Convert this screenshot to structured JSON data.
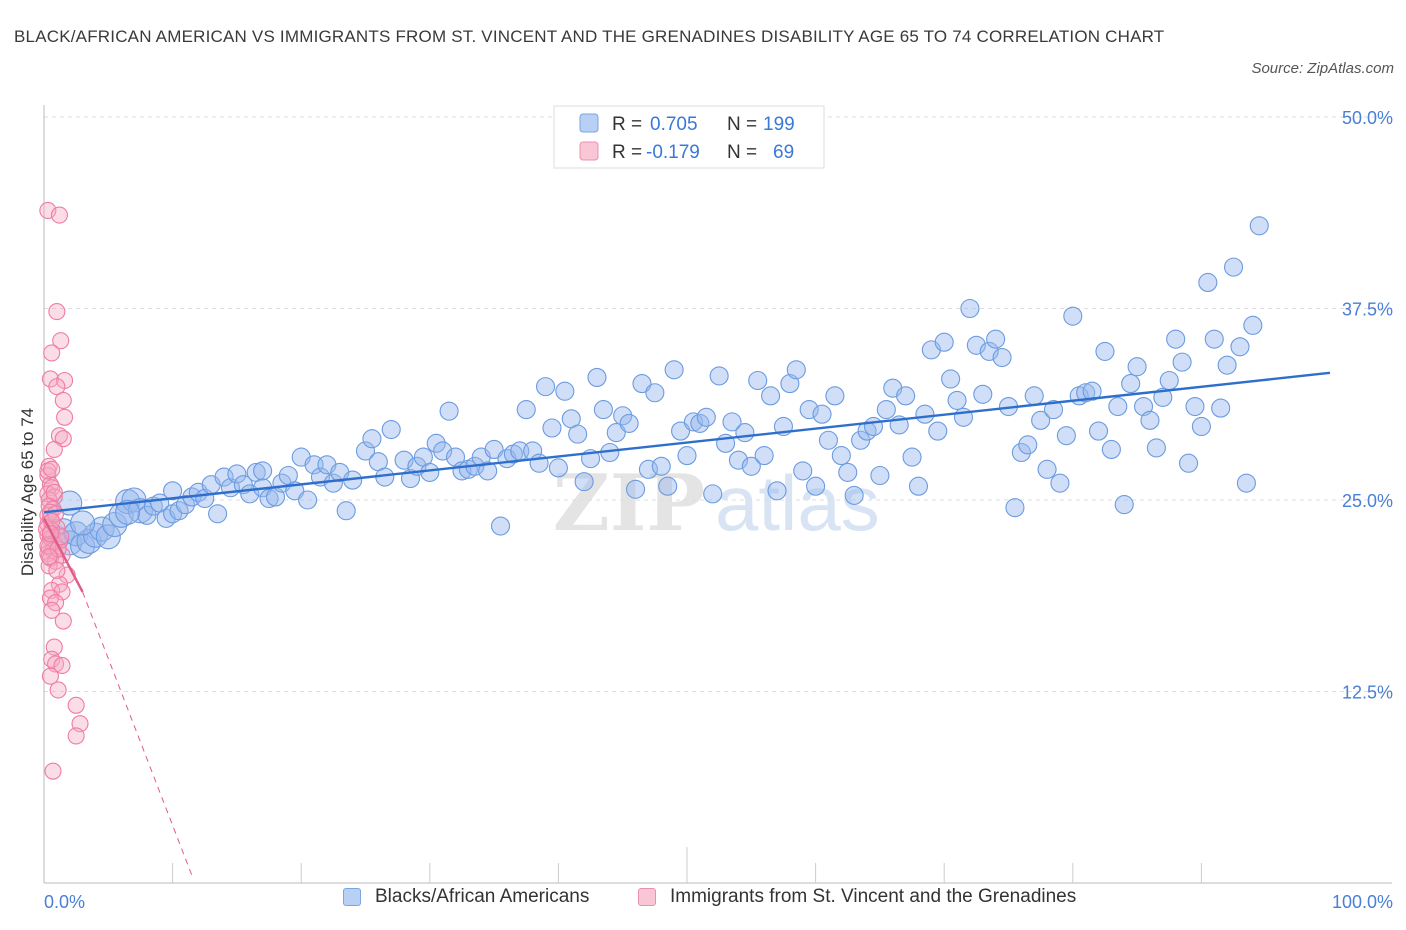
{
  "title": "BLACK/AFRICAN AMERICAN VS IMMIGRANTS FROM ST. VINCENT AND THE GRENADINES DISABILITY AGE 65 TO 74 CORRELATION CHART",
  "source": "Source: ZipAtlas.com",
  "colors": {
    "blue": "#6b9be0",
    "blue_line": "#2f6fcc",
    "pink": "#f07ca3",
    "pink_line": "#e05a8a",
    "axis_text": "#4a7fd4"
  },
  "chart_data": {
    "type": "scatter",
    "title": "BLACK/AFRICAN AMERICAN VS IMMIGRANTS FROM ST. VINCENT AND THE GRENADINES DISABILITY AGE 65 TO 74 CORRELATION CHART",
    "xlabel": "",
    "ylabel": "Disability Age 65 to 74",
    "xlim": [
      0,
      100
    ],
    "ylim": [
      0,
      50
    ],
    "x_tick_labels": [
      "0.0%",
      "100.0%"
    ],
    "y_ticks": [
      12.5,
      25.0,
      37.5,
      50.0
    ],
    "y_tick_labels": [
      "12.5%",
      "25.0%",
      "37.5%",
      "50.0%"
    ],
    "grid": "horizontal dashed",
    "legend_position": "top-center and bottom",
    "stats": [
      {
        "r_label": "R =",
        "r_value": "0.705",
        "n_label": "N =",
        "n_value": "199"
      },
      {
        "r_label": "R =",
        "r_value": "-0.179",
        "n_label": "N =",
        "n_value": "69"
      }
    ],
    "series": [
      {
        "name": "Blacks/African Americans",
        "trend": {
          "x": [
            0,
            100
          ],
          "y": [
            24.2,
            33.3
          ]
        },
        "points": [
          [
            1,
            22.5
          ],
          [
            1.5,
            23
          ],
          [
            2,
            22.2
          ],
          [
            2.5,
            22.8
          ],
          [
            3,
            22
          ],
          [
            3.5,
            22.3
          ],
          [
            4,
            22.7
          ],
          [
            4.5,
            23.1
          ],
          [
            5,
            22.6
          ],
          [
            5.5,
            23.4
          ],
          [
            6,
            24
          ],
          [
            6.5,
            24.9
          ],
          [
            7,
            25
          ],
          [
            7.5,
            24.3
          ],
          [
            8,
            24
          ],
          [
            8.5,
            24.6
          ],
          [
            9,
            24.8
          ],
          [
            9.5,
            23.8
          ],
          [
            10,
            24.1
          ],
          [
            10.5,
            24.3
          ],
          [
            11,
            24.7
          ],
          [
            11.5,
            25.2
          ],
          [
            12,
            25.5
          ],
          [
            12.5,
            25.1
          ],
          [
            13,
            26
          ],
          [
            13.5,
            24.1
          ],
          [
            14,
            26.5
          ],
          [
            14.5,
            25.8
          ],
          [
            15,
            26.7
          ],
          [
            15.5,
            26
          ],
          [
            16,
            25.4
          ],
          [
            16.5,
            26.8
          ],
          [
            17,
            25.8
          ],
          [
            17.5,
            25.1
          ],
          [
            18,
            25.2
          ],
          [
            18.5,
            26.1
          ],
          [
            19,
            26.6
          ],
          [
            19.5,
            25.6
          ],
          [
            20,
            27.8
          ],
          [
            20.5,
            25
          ],
          [
            21,
            27.3
          ],
          [
            21.5,
            26.5
          ],
          [
            22,
            27.3
          ],
          [
            22.5,
            26.1
          ],
          [
            23,
            26.8
          ],
          [
            23.5,
            24.3
          ],
          [
            24,
            26.3
          ],
          [
            25,
            28.2
          ],
          [
            25.5,
            29
          ],
          [
            26,
            27.5
          ],
          [
            26.5,
            26.5
          ],
          [
            27,
            29.6
          ],
          [
            28,
            27.6
          ],
          [
            28.5,
            26.4
          ],
          [
            29,
            27.2
          ],
          [
            29.5,
            27.8
          ],
          [
            30,
            26.8
          ],
          [
            30.5,
            28.7
          ],
          [
            31,
            28.2
          ],
          [
            31.5,
            30.8
          ],
          [
            32,
            27.8
          ],
          [
            32.5,
            26.9
          ],
          [
            33,
            27
          ],
          [
            33.5,
            27.2
          ],
          [
            34,
            27.8
          ],
          [
            34.5,
            26.9
          ],
          [
            35,
            28.3
          ],
          [
            35.5,
            23.3
          ],
          [
            36,
            27.7
          ],
          [
            36.5,
            28
          ],
          [
            37,
            28.2
          ],
          [
            37.5,
            30.9
          ],
          [
            38,
            28.2
          ],
          [
            38.5,
            27.4
          ],
          [
            39,
            32.4
          ],
          [
            39.5,
            29.7
          ],
          [
            40,
            27.1
          ],
          [
            40.5,
            32.1
          ],
          [
            41,
            30.3
          ],
          [
            41.5,
            29.3
          ],
          [
            42,
            26.2
          ],
          [
            42.5,
            27.7
          ],
          [
            43,
            33
          ],
          [
            43.5,
            30.9
          ],
          [
            44,
            28.1
          ],
          [
            44.5,
            29.4
          ],
          [
            45,
            30.5
          ],
          [
            45.5,
            30
          ],
          [
            46,
            25.7
          ],
          [
            46.5,
            32.6
          ],
          [
            47,
            27
          ],
          [
            47.5,
            32
          ],
          [
            48,
            27.2
          ],
          [
            48.5,
            25.9
          ],
          [
            49,
            33.5
          ],
          [
            49.5,
            29.5
          ],
          [
            50,
            27.9
          ],
          [
            50.5,
            30.1
          ],
          [
            51,
            30
          ],
          [
            51.5,
            30.4
          ],
          [
            52,
            25.4
          ],
          [
            52.5,
            33.1
          ],
          [
            53,
            28.7
          ],
          [
            53.5,
            30.1
          ],
          [
            54,
            27.6
          ],
          [
            54.5,
            29.4
          ],
          [
            55,
            27.2
          ],
          [
            55.5,
            32.8
          ],
          [
            56,
            27.9
          ],
          [
            56.5,
            31.8
          ],
          [
            57,
            25.6
          ],
          [
            57.5,
            29.8
          ],
          [
            58,
            32.6
          ],
          [
            58.5,
            33.5
          ],
          [
            59,
            26.9
          ],
          [
            59.5,
            30.9
          ],
          [
            60,
            25.9
          ],
          [
            60.5,
            30.6
          ],
          [
            61,
            28.9
          ],
          [
            61.5,
            31.8
          ],
          [
            62,
            27.9
          ],
          [
            62.5,
            26.8
          ],
          [
            63,
            25.3
          ],
          [
            63.5,
            28.9
          ],
          [
            64,
            29.5
          ],
          [
            64.5,
            29.8
          ],
          [
            65,
            26.6
          ],
          [
            65.5,
            30.9
          ],
          [
            66,
            32.3
          ],
          [
            66.5,
            29.9
          ],
          [
            67,
            31.8
          ],
          [
            67.5,
            27.8
          ],
          [
            68,
            25.9
          ],
          [
            68.5,
            30.6
          ],
          [
            69,
            34.8
          ],
          [
            69.5,
            29.5
          ],
          [
            70,
            35.3
          ],
          [
            70.5,
            32.9
          ],
          [
            71,
            31.5
          ],
          [
            71.5,
            30.4
          ],
          [
            72,
            37.5
          ],
          [
            72.5,
            35.1
          ],
          [
            73,
            31.9
          ],
          [
            73.5,
            34.7
          ],
          [
            74,
            35.5
          ],
          [
            74.5,
            34.3
          ],
          [
            75,
            31.1
          ],
          [
            75.5,
            24.5
          ],
          [
            76,
            28.1
          ],
          [
            76.5,
            28.6
          ],
          [
            77,
            31.8
          ],
          [
            77.5,
            30.2
          ],
          [
            78,
            27
          ],
          [
            78.5,
            30.9
          ],
          [
            79,
            26.1
          ],
          [
            79.5,
            29.2
          ],
          [
            80,
            37
          ],
          [
            80.5,
            31.8
          ],
          [
            81,
            32
          ],
          [
            81.5,
            32.1
          ],
          [
            82,
            29.5
          ],
          [
            82.5,
            34.7
          ],
          [
            83,
            28.3
          ],
          [
            83.5,
            31.1
          ],
          [
            84,
            24.7
          ],
          [
            84.5,
            32.6
          ],
          [
            85,
            33.7
          ],
          [
            85.5,
            31.1
          ],
          [
            86,
            30.2
          ],
          [
            86.5,
            28.4
          ],
          [
            87,
            31.7
          ],
          [
            87.5,
            32.8
          ],
          [
            88,
            35.5
          ],
          [
            88.5,
            34
          ],
          [
            89,
            27.4
          ],
          [
            89.5,
            31.1
          ],
          [
            90,
            29.8
          ],
          [
            90.5,
            39.2
          ],
          [
            91,
            35.5
          ],
          [
            91.5,
            31
          ],
          [
            92,
            33.8
          ],
          [
            92.5,
            40.2
          ],
          [
            93,
            35
          ],
          [
            93.5,
            26.1
          ],
          [
            94,
            36.4
          ],
          [
            94.5,
            42.9
          ],
          [
            2,
            24.8
          ],
          [
            3,
            23.5
          ],
          [
            6.5,
            24.2
          ],
          [
            10,
            25.6
          ],
          [
            17,
            26.9
          ]
        ]
      },
      {
        "name": "Immigrants from St. Vincent and the Grenadines",
        "trend": {
          "x": [
            0,
            3
          ],
          "y": [
            23.8,
            19.0
          ]
        },
        "trend_dashed": {
          "x": [
            3,
            11.5
          ],
          "y": [
            19.0,
            0.5
          ]
        },
        "points": [
          [
            0.3,
            43.9
          ],
          [
            1.2,
            43.6
          ],
          [
            1,
            37.3
          ],
          [
            1.3,
            35.4
          ],
          [
            0.6,
            34.6
          ],
          [
            0.5,
            32.9
          ],
          [
            1.6,
            32.8
          ],
          [
            1,
            32.4
          ],
          [
            1.5,
            31.5
          ],
          [
            1.6,
            30.4
          ],
          [
            1.2,
            29.2
          ],
          [
            1.5,
            29
          ],
          [
            0.8,
            28.3
          ],
          [
            0.4,
            27.2
          ],
          [
            0.3,
            26.6
          ],
          [
            0.5,
            26
          ],
          [
            0.6,
            25.8
          ],
          [
            0.3,
            25.4
          ],
          [
            0.8,
            25.2
          ],
          [
            0.4,
            25
          ],
          [
            0.4,
            24.6
          ],
          [
            0.7,
            24.4
          ],
          [
            0.3,
            24
          ],
          [
            0.5,
            23.8
          ],
          [
            0.3,
            23.4
          ],
          [
            1,
            23.2
          ],
          [
            0.6,
            23
          ],
          [
            0.3,
            22.7
          ],
          [
            0.5,
            22.5
          ],
          [
            1.2,
            22.3
          ],
          [
            0.8,
            22.1
          ],
          [
            0.4,
            21.9
          ],
          [
            0.7,
            21.7
          ],
          [
            0.3,
            21.5
          ],
          [
            1.4,
            21.4
          ],
          [
            0.5,
            21.2
          ],
          [
            0.9,
            21
          ],
          [
            0.4,
            20.7
          ],
          [
            1.8,
            20.1
          ],
          [
            1.2,
            19.5
          ],
          [
            0.6,
            19.1
          ],
          [
            1.4,
            19
          ],
          [
            0.5,
            18.6
          ],
          [
            0.9,
            18.3
          ],
          [
            0.6,
            17.8
          ],
          [
            1.5,
            17.1
          ],
          [
            0.8,
            15.4
          ],
          [
            0.6,
            14.6
          ],
          [
            0.9,
            14.3
          ],
          [
            1.4,
            14.2
          ],
          [
            0.5,
            13.5
          ],
          [
            1.1,
            12.6
          ],
          [
            2.5,
            11.6
          ],
          [
            2.8,
            10.4
          ],
          [
            2.5,
            9.6
          ],
          [
            0.7,
            7.3
          ],
          [
            0.3,
            26.9
          ],
          [
            0.6,
            27
          ],
          [
            0.5,
            24.2
          ],
          [
            0.2,
            23.1
          ],
          [
            0.9,
            24.1
          ],
          [
            0.3,
            22
          ],
          [
            1.1,
            21.8
          ],
          [
            1.3,
            22.6
          ],
          [
            0.8,
            25.5
          ],
          [
            0.4,
            21.3
          ],
          [
            1,
            20.4
          ],
          [
            0.6,
            23.6
          ],
          [
            0.5,
            22.8
          ]
        ]
      }
    ]
  }
}
